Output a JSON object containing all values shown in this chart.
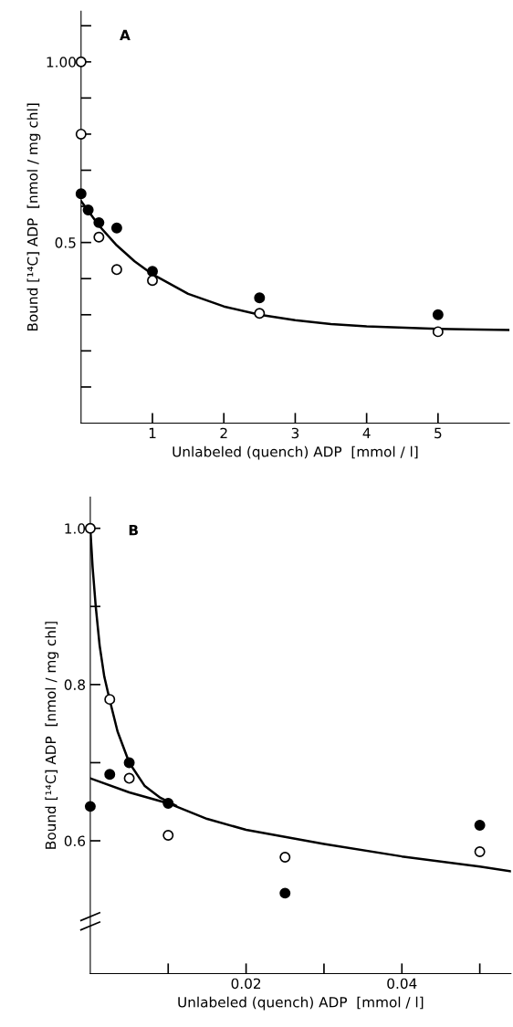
{
  "chart_data": [
    {
      "type": "scatter",
      "title": "A",
      "xlabel": "Unlabeled (quench) ADP  [mmol / l]",
      "ylabel": "Bound [¹⁴C] ADP  [nmol / mg chl]",
      "marker": "circle",
      "grid": false,
      "legend": false,
      "xlim": [
        0,
        6
      ],
      "xticks": [
        1,
        2,
        3,
        4,
        5
      ],
      "ylim": [
        0,
        1.14
      ],
      "yticks": [
        {
          "value": 0.1,
          "label": null
        },
        {
          "value": 0.2,
          "label": null
        },
        {
          "value": 0.3,
          "label": null
        },
        {
          "value": 0.4,
          "label": null
        },
        {
          "value": 0.5,
          "label": "0.5"
        },
        {
          "value": 0.6,
          "label": null
        },
        {
          "value": 0.7,
          "label": null
        },
        {
          "value": 0.8,
          "label": null
        },
        {
          "value": 0.9,
          "label": null
        },
        {
          "value": 1.0,
          "label": "1.00"
        },
        {
          "value": 1.1,
          "label": null
        }
      ],
      "series": [
        {
          "type": "line",
          "marker": "none",
          "color": "#000000",
          "x": [
            0,
            0.25,
            0.5,
            0.75,
            1,
            1.5,
            2,
            2.5,
            3,
            3.5,
            4,
            5,
            6
          ],
          "values": [
            0.615,
            0.547,
            0.492,
            0.448,
            0.412,
            0.358,
            0.323,
            0.3,
            0.285,
            0.274,
            0.268,
            0.261,
            0.258
          ]
        },
        {
          "color": "#000000",
          "x": [
            0,
            0.1,
            0.25,
            0.5,
            1,
            2.5,
            5
          ],
          "values": [
            0.635,
            0.59,
            0.555,
            0.54,
            0.42,
            0.347,
            0.3
          ]
        },
        {
          "color": "#ffffff",
          "x": [
            0,
            0,
            0.25,
            0.5,
            1,
            2.5,
            5
          ],
          "values": [
            1.0,
            0.8,
            0.515,
            0.425,
            0.395,
            0.304,
            0.253
          ]
        }
      ]
    },
    {
      "type": "scatter",
      "title": "B",
      "xlabel": "Unlabeled (quench) ADP  [mmol / l]",
      "ylabel": "Bound [¹⁴C] ADP  [nmol / mg chl]",
      "marker": "circle",
      "grid": false,
      "legend": false,
      "xlim": [
        0,
        0.054
      ],
      "xticks": [
        {
          "value": 0.01,
          "label": null
        },
        0.02,
        {
          "value": 0.03,
          "label": null
        },
        0.04,
        {
          "value": 0.05,
          "label": null
        }
      ],
      "ylim": [
        0.43,
        1.04
      ],
      "yticks": [
        0.6,
        {
          "value": 0.7,
          "label": null
        },
        0.8,
        {
          "value": 0.9,
          "label": null
        },
        {
          "value": 1.0,
          "label": "1.0"
        }
      ],
      "series": [
        {
          "type": "line",
          "marker": "none",
          "color": "#000000",
          "x": [
            0,
            0.0003,
            0.0007,
            0.0012,
            0.0018,
            0.0025,
            0.0035,
            0.005,
            0.007,
            0.009,
            0.011
          ],
          "values": [
            1.0,
            0.95,
            0.9,
            0.85,
            0.81,
            0.78,
            0.74,
            0.7,
            0.67,
            0.655,
            0.645
          ]
        },
        {
          "type": "line",
          "marker": "none",
          "color": "#000000",
          "x": [
            0,
            0.005,
            0.01,
            0.015,
            0.02,
            0.03,
            0.04,
            0.05,
            0.054
          ],
          "values": [
            0.68,
            0.662,
            0.648,
            0.628,
            0.614,
            0.596,
            0.58,
            0.567,
            0.561
          ]
        },
        {
          "color": "#000000",
          "x": [
            0,
            0.0025,
            0.005,
            0.01,
            0.025,
            0.05
          ],
          "values": [
            0.644,
            0.685,
            0.7,
            0.648,
            0.533,
            0.62
          ]
        },
        {
          "color": "#ffffff",
          "x": [
            0,
            0.0025,
            0.005,
            0.01,
            0.025,
            0.05
          ],
          "values": [
            1.0,
            0.781,
            0.68,
            0.607,
            0.579,
            0.586
          ]
        }
      ]
    }
  ]
}
